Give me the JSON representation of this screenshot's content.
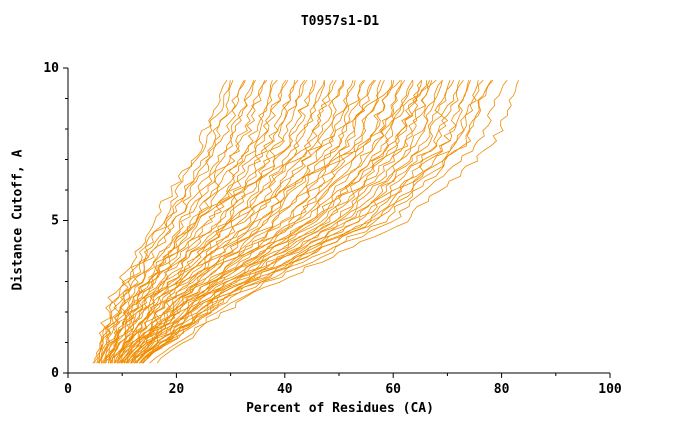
{
  "chart_data": {
    "type": "line",
    "title": "T0957s1-D1",
    "xlabel": "Percent of Residues (CA)",
    "ylabel": "Distance Cutoff, A",
    "xlim": [
      0,
      100
    ],
    "ylim": [
      0,
      10
    ],
    "x_ticks": [
      0,
      20,
      40,
      60,
      80,
      100
    ],
    "y_ticks": [
      0,
      5,
      10
    ],
    "x_minor_step": 10,
    "y_minor_step": 1,
    "legend": "none",
    "grid": false,
    "curve_color": "#f08c00",
    "axis_color": "#000000",
    "anchor_y": [
      0.4,
      2.5,
      5.0,
      7.5,
      9.6
    ],
    "curves_desc": "Each curve is one model; values are estimated x (percent of residues, CA) at the anchor distance cutoffs in anchor_y. Curves rise from ~5-16% at 0.4 A to ~29-84% at 9.6 A.",
    "curves": [
      [
        5.0,
        8.2,
        15.8,
        24.5,
        29.2
      ],
      [
        5.1,
        9.2,
        17.4,
        25.2,
        30.0
      ],
      [
        5.4,
        9.0,
        18.2,
        26.8,
        30.6
      ],
      [
        5.5,
        10.0,
        18.4,
        27.0,
        32.4
      ],
      [
        5.6,
        10.4,
        19.8,
        28.0,
        32.6
      ],
      [
        5.9,
        10.3,
        20.0,
        29.6,
        34.2
      ],
      [
        6.0,
        11.2,
        21.4,
        30.0,
        34.6
      ],
      [
        6.1,
        11.0,
        21.6,
        31.5,
        36.0
      ],
      [
        6.4,
        12.2,
        23.2,
        32.0,
        36.5
      ],
      [
        6.5,
        12.0,
        23.3,
        33.4,
        38.0
      ],
      [
        6.6,
        12.8,
        24.6,
        33.8,
        38.4
      ],
      [
        6.9,
        12.9,
        24.8,
        35.2,
        40.0
      ],
      [
        7.0,
        13.6,
        26.2,
        35.5,
        40.3
      ],
      [
        7.1,
        13.5,
        26.3,
        37.0,
        41.8
      ],
      [
        7.4,
        14.4,
        27.7,
        37.3,
        42.1
      ],
      [
        7.5,
        14.3,
        27.8,
        38.8,
        43.6
      ],
      [
        7.7,
        15.2,
        29.3,
        39.0,
        43.9
      ],
      [
        7.8,
        15.1,
        29.4,
        40.6,
        45.4
      ],
      [
        8.0,
        16.0,
        30.8,
        40.9,
        45.7
      ],
      [
        8.2,
        15.9,
        31.0,
        42.4,
        47.2
      ],
      [
        8.3,
        16.8,
        32.4,
        42.7,
        47.5
      ],
      [
        8.6,
        16.7,
        32.5,
        44.2,
        49.0
      ],
      [
        8.7,
        17.6,
        33.9,
        44.5,
        49.3
      ],
      [
        8.8,
        17.5,
        34.0,
        46.0,
        50.8
      ],
      [
        9.1,
        18.4,
        35.4,
        46.3,
        51.1
      ],
      [
        9.2,
        18.3,
        35.6,
        47.8,
        52.6
      ],
      [
        9.3,
        19.2,
        37.0,
        48.1,
        52.9
      ],
      [
        9.6,
        19.1,
        37.1,
        49.6,
        54.4
      ],
      [
        9.7,
        20.0,
        38.5,
        49.9,
        54.7
      ],
      [
        9.8,
        19.9,
        38.6,
        51.4,
        56.2
      ],
      [
        10.1,
        20.8,
        40.0,
        51.7,
        56.5
      ],
      [
        10.2,
        20.7,
        40.2,
        53.2,
        58.0
      ],
      [
        10.3,
        21.6,
        41.6,
        53.5,
        58.3
      ],
      [
        10.6,
        21.5,
        41.7,
        55.0,
        59.8
      ],
      [
        10.7,
        22.4,
        43.1,
        55.3,
        60.1
      ],
      [
        10.8,
        22.3,
        43.2,
        56.8,
        61.6
      ],
      [
        11.1,
        23.2,
        44.6,
        57.1,
        61.9
      ],
      [
        11.2,
        23.1,
        44.8,
        58.6,
        63.4
      ],
      [
        11.3,
        24.0,
        46.2,
        58.9,
        63.7
      ],
      [
        11.6,
        23.9,
        46.3,
        60.4,
        65.2
      ],
      [
        11.7,
        24.8,
        47.7,
        60.7,
        65.5
      ],
      [
        11.8,
        24.7,
        47.8,
        62.2,
        67.0
      ],
      [
        12.1,
        25.6,
        49.2,
        62.5,
        67.3
      ],
      [
        12.2,
        25.5,
        49.4,
        64.0,
        68.8
      ],
      [
        12.3,
        26.4,
        50.8,
        64.3,
        69.1
      ],
      [
        12.6,
        26.3,
        50.9,
        65.8,
        70.6
      ],
      [
        12.7,
        27.2,
        52.3,
        66.1,
        70.9
      ],
      [
        12.8,
        27.1,
        52.4,
        67.6,
        72.4
      ],
      [
        13.1,
        28.0,
        53.8,
        67.9,
        72.7
      ],
      [
        13.2,
        27.9,
        54.0,
        69.4,
        74.2
      ],
      [
        13.4,
        28.8,
        55.4,
        69.7,
        74.5
      ],
      [
        13.6,
        28.7,
        55.5,
        71.2,
        76.0
      ],
      [
        13.7,
        29.6,
        56.9,
        71.5,
        76.3
      ],
      [
        13.9,
        29.5,
        57.0,
        73.0,
        77.8
      ],
      [
        14.0,
        30.4,
        58.4,
        73.3,
        78.1
      ],
      [
        15.4,
        31.5,
        59.8,
        75.8,
        80.9
      ],
      [
        16.2,
        33.2,
        62.3,
        78.6,
        83.4
      ],
      [
        7.2,
        12.4,
        22.6,
        46.8,
        61.5
      ],
      [
        9.4,
        16.4,
        30.2,
        54.6,
        67.8
      ],
      [
        11.4,
        22.8,
        45.4,
        59.8,
        66.4
      ]
    ]
  }
}
